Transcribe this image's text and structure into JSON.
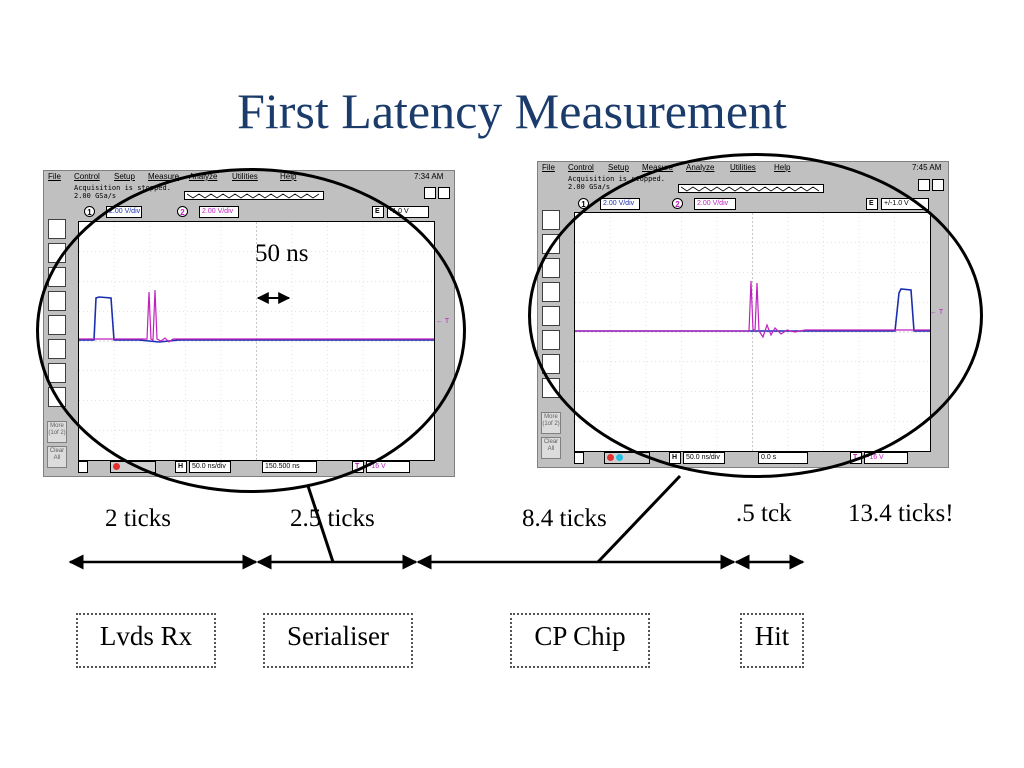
{
  "title": "First Latency Measurement",
  "scope_left": {
    "menu": [
      "File",
      "Control",
      "Setup",
      "Measure",
      "Analyze",
      "Utilities",
      "Help"
    ],
    "clock": "7:34 AM",
    "status_line1": "Acquisition is stopped.",
    "status_line2": "2.00 GSa/s",
    "ch1_scale": "2.00 V/div",
    "ch2_scale": "2.00 V/div",
    "trig_label": "E",
    "trig_level": "-1.0 V",
    "timebase_label": "H",
    "timebase": "50.0 ns/div",
    "delay": "150.500 ns",
    "trig_bottom": "T",
    "trig_bottom_value": "-16 V",
    "more_button": "More (1of 2)",
    "clear_button": "Clear All",
    "side_t_label": "← T"
  },
  "scope_right": {
    "menu": [
      "File",
      "Control",
      "Setup",
      "Measure",
      "Analyze",
      "Utilities",
      "Help"
    ],
    "clock": "7:45 AM",
    "status_line1": "Acquisition is stopped.",
    "status_line2": "2.00 GSa/s",
    "ch1_scale": "2.00 V/div",
    "ch2_scale": "2.00 V/div",
    "trig_label": "E",
    "trig_level": "+/-1.0 V",
    "timebase_label": "H",
    "timebase": "50.0 ns/div",
    "delay": "0.0 s",
    "trig_bottom": "T",
    "trig_bottom_value": "-16 V",
    "more_button": "More (1of 2)",
    "clear_button": "Clear All",
    "side_t_label": "← T"
  },
  "annotation_50ns": "50 ns",
  "ticks": {
    "lvds": "2 ticks",
    "serialiser": "2.5 ticks",
    "cp": "8.4 ticks",
    "hit": ".5 tck",
    "total": "13.4 ticks!"
  },
  "boxes": {
    "lvds": "Lvds Rx",
    "serialiser": "Serialiser",
    "cp": "CP Chip",
    "hit": "Hit"
  },
  "colors": {
    "title": "#1b3c6b",
    "ch1": "#1a2fb0",
    "ch2": "#c020c0"
  }
}
